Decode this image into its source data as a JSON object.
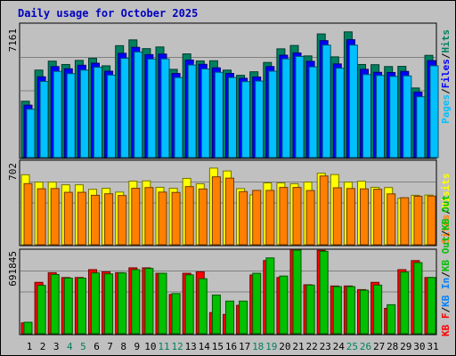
{
  "chart_data": {
    "type": "bar",
    "title": "Daily usage for October 2025",
    "categories": [
      "1",
      "2",
      "3",
      "4",
      "5",
      "6",
      "7",
      "8",
      "9",
      "10",
      "11",
      "12",
      "13",
      "14",
      "15",
      "16",
      "17",
      "18",
      "19",
      "20",
      "21",
      "22",
      "23",
      "24",
      "25",
      "26",
      "27",
      "28",
      "29",
      "30",
      "31"
    ],
    "weekend_days": [
      "4",
      "5",
      "11",
      "12",
      "18",
      "19",
      "25",
      "26"
    ],
    "panels": [
      {
        "id": "top",
        "ymax_label": "7161",
        "ylim": [
          0,
          7161
        ],
        "legend": [
          "Pages",
          "/",
          "Files",
          "/",
          "Hits"
        ],
        "legend_colors": [
          "#00c0ff",
          "#000000",
          "#0000ff",
          "#000000",
          "#008060"
        ],
        "series": [
          {
            "name": "Hits",
            "color": "#008060",
            "values": [
              3020,
              4690,
              5170,
              4990,
              5210,
              5320,
              4920,
              6000,
              6310,
              5840,
              5930,
              4730,
              5560,
              5180,
              5190,
              4690,
              4410,
              4600,
              5100,
              5830,
              6010,
              5450,
              6630,
              5400,
              6740,
              4990,
              4980,
              4880,
              4890,
              3730,
              5480
            ]
          },
          {
            "name": "Files",
            "color": "#0000ff",
            "values": [
              2810,
              4330,
              4880,
              4760,
              4950,
              5060,
              4630,
              5590,
              5910,
              5520,
              5550,
              4510,
              5230,
              5000,
              4810,
              4510,
              4250,
              4320,
              4880,
              5490,
              5610,
              5160,
              6270,
              5020,
              6320,
              4730,
              4570,
              4560,
              4620,
              3510,
              5200
            ]
          },
          {
            "name": "Pages",
            "color": "#00c0ff",
            "values": [
              2590,
              4080,
              4620,
              4500,
              4690,
              4840,
              4420,
              5320,
              5660,
              5280,
              5290,
              4290,
              4960,
              4750,
              4570,
              4290,
              4070,
              4100,
              4630,
              5290,
              5420,
              4860,
              6030,
              4790,
              6030,
              4450,
              4400,
              4350,
              4380,
              3260,
              4920
            ]
          }
        ]
      },
      {
        "id": "mid",
        "ymax_label": "702",
        "ylim": [
          0,
          702
        ],
        "legend": [
          "Sites",
          "/",
          "Visits"
        ],
        "legend_colors": [
          "#ff8000",
          "#000000",
          "#ffff00"
        ],
        "series": [
          {
            "name": "Visits",
            "color": "#ffff00",
            "values": [
              587,
              526,
              526,
              503,
              503,
              465,
              474,
              442,
              534,
              536,
              482,
              474,
              557,
              512,
              643,
              619,
              471,
              419,
              519,
              519,
              512,
              526,
              600,
              589,
              526,
              533,
              482,
              480,
              390,
              415,
              417
            ]
          },
          {
            "name": "Sites",
            "color": "#ff8000",
            "values": [
              513,
              470,
              472,
              440,
              440,
              415,
              428,
              413,
              474,
              480,
              442,
              439,
              488,
              468,
              570,
              559,
              446,
              456,
              456,
              481,
              481,
              455,
              577,
              478,
              472,
              469,
              466,
              427,
              395,
              407,
              409
            ]
          }
        ]
      },
      {
        "id": "bot",
        "ymax_label": "691845",
        "ylim": [
          0,
          691845
        ],
        "legend": [
          "KB F",
          "/",
          "KB In",
          "/",
          "KB Out",
          "/",
          "KB Out"
        ],
        "legend_colors": [
          "#ff0000",
          "#000000",
          "#0080ff",
          "#000000",
          "#00c000",
          "#000000",
          "#00c000"
        ],
        "series": [
          {
            "name": "KB F",
            "color": "#ff0000",
            "values": [
              90000,
              425000,
              505000,
              465000,
              465000,
              530000,
              512000,
              505000,
              545000,
              545000,
              500000,
              325000,
              500000,
              512000,
              175000,
              160000,
              235000,
              486000,
              605000,
              465000,
              695000,
              405000,
              690000,
              395000,
              395000,
              365000,
              425000,
              210000,
              530000,
              605000,
              465000
            ]
          },
          {
            "name": "KB Out",
            "color": "#00c000",
            "values": [
              95000,
              400000,
              490000,
              460000,
              460000,
              503000,
              495000,
              503000,
              530000,
              540000,
              500000,
              332000,
              487000,
              455000,
              320000,
              270000,
              270000,
              500000,
              627000,
              477000,
              691845,
              402000,
              682000,
              390000,
              390000,
              360000,
              402000,
              240000,
              510000,
              588000,
              465000
            ]
          }
        ]
      }
    ]
  }
}
